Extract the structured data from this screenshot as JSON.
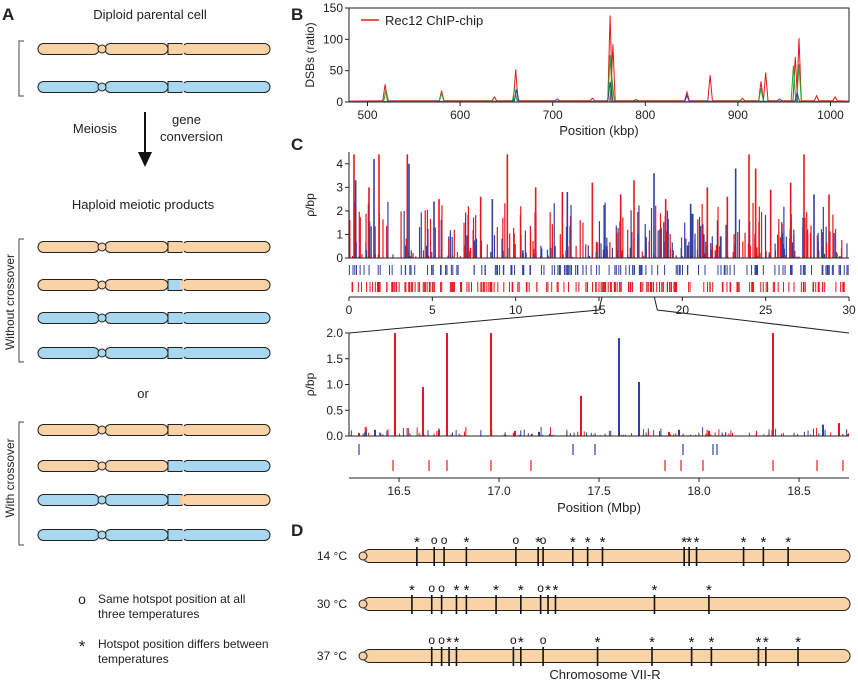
{
  "colors": {
    "parent1": "#F9D2A5",
    "parent2": "#A8D8F0",
    "red": "#E8161E",
    "blue": "#3040A0",
    "green": "#22A822"
  },
  "panel_a": {
    "letter": "A",
    "title": "Diploid parental cell",
    "meiosis": "Meiosis",
    "gene_conversion_line1": "gene",
    "gene_conversion_line2": "conversion",
    "products": "Haploid meiotic products",
    "without": "Without crossover",
    "or": "or",
    "with": "With crossover",
    "legend_o_symbol": "o",
    "legend_o_line1": "Same hotspot position at all",
    "legend_o_line2": "three temperatures",
    "legend_star_symbol": "*",
    "legend_star_line1": "Hotspot position differs between",
    "legend_star_line2": "temperatures"
  },
  "panel_b_letter": "B",
  "panel_c_letter": "C",
  "panel_d_letter": "D",
  "panel_d": {
    "temps": [
      "14 °C",
      "30 °C",
      "37 °C"
    ],
    "xlabel": "Chromosome VII-R"
  },
  "chart_data": [
    {
      "id": "B",
      "type": "line",
      "title": "",
      "legend": "Rec12 ChIP-chip",
      "xlabel": "Position (kbp)",
      "ylabel": "DSBs (ratio)",
      "xlim": [
        480,
        1020
      ],
      "ylim": [
        0,
        150
      ],
      "xticks": [
        500,
        600,
        700,
        800,
        900,
        1000
      ],
      "yticks": [
        0,
        50,
        100,
        150
      ],
      "series": [
        {
          "name": "Rec12 ChIP-chip",
          "color": "red",
          "peaks": [
            [
              519,
              28
            ],
            [
              580,
              18
            ],
            [
              637,
              8
            ],
            [
              660,
              52
            ],
            [
              705,
              5
            ],
            [
              743,
              6
            ],
            [
              762,
              138
            ],
            [
              765,
              92
            ],
            [
              790,
              4
            ],
            [
              845,
              16
            ],
            [
              870,
              43
            ],
            [
              905,
              6
            ],
            [
              925,
              33
            ],
            [
              930,
              47
            ],
            [
              945,
              5
            ],
            [
              962,
              72
            ],
            [
              966,
              102
            ],
            [
              985,
              10
            ],
            [
              1005,
              8
            ]
          ]
        },
        {
          "name": "green",
          "color": "green",
          "peaks": [
            [
              520,
              20
            ],
            [
              580,
              14
            ],
            [
              659,
              22
            ],
            [
              762,
              75
            ],
            [
              764,
              38
            ],
            [
              925,
              22
            ],
            [
              960,
              58
            ],
            [
              966,
              60
            ]
          ]
        },
        {
          "name": "blue",
          "color": "blue",
          "peaks": [
            [
              661,
              20
            ],
            [
              762,
              32
            ],
            [
              845,
              10
            ],
            [
              964,
              15
            ]
          ]
        }
      ]
    },
    {
      "id": "C-top",
      "type": "bar",
      "xlabel": "",
      "ylabel": "ρ/bp",
      "xlim": [
        0,
        30
      ],
      "ylim": [
        0,
        4.5
      ],
      "xticks": [
        0,
        5,
        10,
        15,
        20,
        25,
        30
      ],
      "yticks": [
        0,
        1,
        2,
        3,
        4
      ],
      "red_tall": [
        [
          0.3,
          4.4
        ],
        [
          1.2,
          3.0
        ],
        [
          1.8,
          4.4
        ],
        [
          3.5,
          4.4
        ],
        [
          5.4,
          2.5
        ],
        [
          7.9,
          2.6
        ],
        [
          9.5,
          4.4
        ],
        [
          11.2,
          3.0
        ],
        [
          12.8,
          2.8
        ],
        [
          14.6,
          3.2
        ],
        [
          16.3,
          2.7
        ],
        [
          17.1,
          3.3
        ],
        [
          19.0,
          2.5
        ],
        [
          21.5,
          3.0
        ],
        [
          22.7,
          2.6
        ],
        [
          24.0,
          4.4
        ],
        [
          24.4,
          3.8
        ],
        [
          25.3,
          2.9
        ],
        [
          26.5,
          3.2
        ],
        [
          27.3,
          4.4
        ],
        [
          28.8,
          2.7
        ]
      ],
      "blue_tall": [
        [
          0.4,
          3.3
        ],
        [
          1.5,
          4.2
        ],
        [
          3.6,
          4.0
        ],
        [
          5.1,
          2.4
        ],
        [
          8.6,
          2.5
        ],
        [
          13.1,
          2.8
        ],
        [
          18.3,
          3.6
        ],
        [
          20.5,
          2.3
        ],
        [
          23.2,
          3.8
        ],
        [
          27.9,
          2.7
        ]
      ],
      "tick_rows": [
        "blue",
        "red"
      ]
    },
    {
      "id": "C-zoom",
      "type": "bar",
      "xlabel": "Position (Mbp)",
      "ylabel": "ρ/bp",
      "xlim": [
        16.25,
        18.75
      ],
      "ylim": [
        0,
        2.0
      ],
      "xticks": [
        16.5,
        17.0,
        17.5,
        18.0,
        18.5
      ],
      "xtick_labels": [
        "16.5",
        "17.0",
        "17.5",
        "18.0",
        "18.5"
      ],
      "yticks": [
        0,
        0.5,
        1.0,
        1.5,
        2.0
      ],
      "ytick_labels": [
        "0.0",
        "0.5",
        "1.0",
        "1.5",
        "2.0"
      ],
      "red": [
        [
          16.48,
          2.0
        ],
        [
          16.62,
          0.95
        ],
        [
          16.74,
          2.0
        ],
        [
          16.96,
          2.0
        ],
        [
          17.41,
          0.78
        ],
        [
          18.37,
          2.0
        ],
        [
          16.7,
          0.12
        ],
        [
          17.08,
          0.1
        ],
        [
          17.85,
          0.08
        ],
        [
          18.7,
          0.25
        ],
        [
          16.3,
          0.06
        ],
        [
          18.05,
          0.1
        ]
      ],
      "blue": [
        [
          17.6,
          1.9
        ],
        [
          17.7,
          1.05
        ],
        [
          16.38,
          0.12
        ],
        [
          17.2,
          0.08
        ],
        [
          17.9,
          0.12
        ],
        [
          18.62,
          0.22
        ]
      ],
      "zoom_from": [
        15.0,
        18.5
      ],
      "tick_red": [
        16.47,
        16.65,
        16.74,
        16.96,
        17.16,
        17.83,
        17.91,
        18.02,
        18.37,
        18.59,
        18.72
      ],
      "tick_blue": [
        16.3,
        17.37,
        17.48,
        17.92,
        18.07,
        18.09
      ]
    },
    {
      "id": "D",
      "type": "scatter",
      "rows": [
        {
          "temp": "14 °C",
          "marks": [
            [
              "*",
              0.125
            ],
            [
              "o",
              0.16
            ],
            [
              "o",
              0.18
            ],
            [
              "*",
              0.225
            ],
            [
              "o",
              0.325
            ],
            [
              "*",
              0.37
            ],
            [
              "o",
              0.38
            ],
            [
              "*",
              0.44
            ],
            [
              "*",
              0.47
            ],
            [
              "*",
              0.5
            ],
            [
              "*",
              0.665
            ],
            [
              "*",
              0.675
            ],
            [
              "*",
              0.69
            ],
            [
              "*",
              0.785
            ],
            [
              "*",
              0.825
            ],
            [
              "*",
              0.875
            ]
          ]
        },
        {
          "temp": "30 °C",
          "marks": [
            [
              "*",
              0.115
            ],
            [
              "o",
              0.155
            ],
            [
              "o",
              0.175
            ],
            [
              "*",
              0.205
            ],
            [
              "*",
              0.225
            ],
            [
              "*",
              0.285
            ],
            [
              "*",
              0.335
            ],
            [
              "o",
              0.375
            ],
            [
              "*",
              0.39
            ],
            [
              "*",
              0.405
            ],
            [
              "*",
              0.605
            ],
            [
              "*",
              0.715
            ]
          ]
        },
        {
          "temp": "37 °C",
          "marks": [
            [
              "o",
              0.155
            ],
            [
              "o",
              0.175
            ],
            [
              "*",
              0.19
            ],
            [
              "*",
              0.205
            ],
            [
              "o",
              0.32
            ],
            [
              "*",
              0.335
            ],
            [
              "o",
              0.38
            ],
            [
              "*",
              0.49
            ],
            [
              "*",
              0.6
            ],
            [
              "*",
              0.68
            ],
            [
              "*",
              0.72
            ],
            [
              "*",
              0.815
            ],
            [
              "*",
              0.83
            ],
            [
              "*",
              0.895
            ]
          ]
        }
      ]
    }
  ]
}
